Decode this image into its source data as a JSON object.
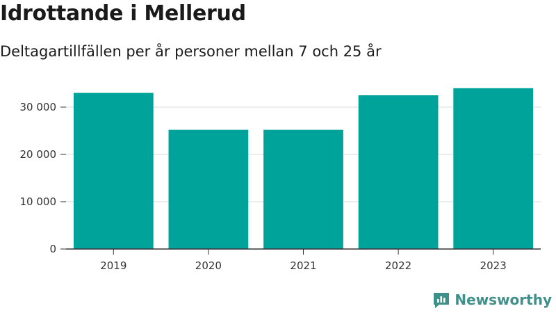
{
  "title": "Idrottande i Mellerud",
  "subtitle": "Deltagartillfällen per år personer mellan 7 och 25 år",
  "brand": {
    "name": "Newsworthy",
    "color": "#3f8f8a"
  },
  "colors": {
    "bar": "#00a39a",
    "grid": "#d9d9d9",
    "axis": "#333333"
  },
  "chart_data": {
    "type": "bar",
    "title": "Idrottande i Mellerud",
    "subtitle": "Deltagartillfällen per år personer mellan 7 och 25 år",
    "categories": [
      "2019",
      "2020",
      "2021",
      "2022",
      "2023"
    ],
    "values": [
      33000,
      25200,
      25200,
      32500,
      34000
    ],
    "ylim": [
      0,
      35000
    ],
    "yticks": [
      0,
      10000,
      20000,
      30000
    ],
    "ytick_labels": [
      "0",
      "10 000",
      "20 000",
      "30 000"
    ],
    "grid": true,
    "legend": "none"
  }
}
